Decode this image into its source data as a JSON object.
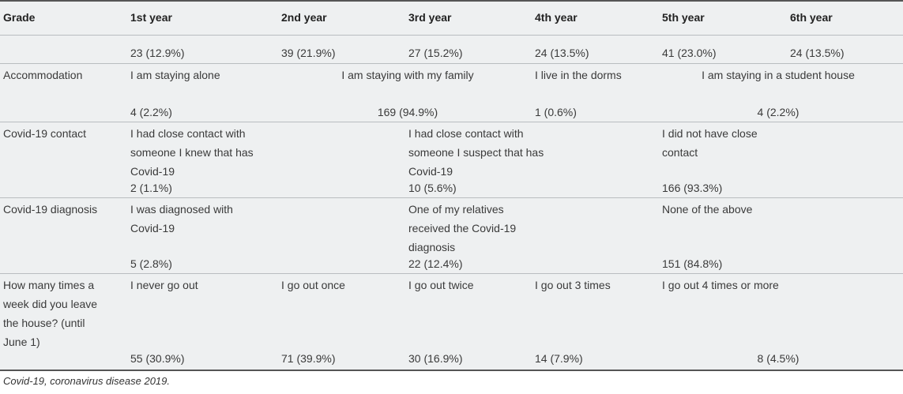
{
  "header": {
    "grade": "Grade",
    "years": [
      "1st year",
      "2nd year",
      "3rd year",
      "4th year",
      "5th year",
      "6th year"
    ]
  },
  "grade_counts": [
    "23 (12.9%)",
    "39 (21.9%)",
    "27 (15.2%)",
    "24 (13.5%)",
    "41 (23.0%)",
    "24 (13.5%)"
  ],
  "accommodation": {
    "label": "Accommodation",
    "options": [
      "I am staying alone",
      "I am staying with my family",
      "I live in the dorms",
      "I am staying in a student house"
    ],
    "values": [
      "4 (2.2%)",
      "169 (94.9%)",
      "1 (0.6%)",
      "4 (2.2%)"
    ]
  },
  "contact": {
    "label": "Covid-19 contact",
    "options": [
      "I had close contact with someone I knew that has Covid-19",
      "I had close contact with someone I suspect that has Covid-19",
      "I did not have close contact"
    ],
    "values": [
      "2 (1.1%)",
      "10 (5.6%)",
      "166 (93.3%)"
    ]
  },
  "diagnosis": {
    "label": "Covid-19 diagnosis",
    "options": [
      "I was diagnosed with Covid-19",
      "One of my relatives received the Covid-19 diagnosis",
      "None of the above"
    ],
    "values": [
      "5 (2.8%)",
      "22 (12.4%)",
      "151 (84.8%)"
    ]
  },
  "outings": {
    "label": "How many times a week did you leave the house? (until June 1)",
    "options": [
      "I never go out",
      "I go out once",
      "I go out twice",
      "I go out 3 times",
      "I go out 4 times or more"
    ],
    "values": [
      "55 (30.9%)",
      "71 (39.9%)",
      "30 (16.9%)",
      "14 (7.9%)",
      "8 (4.5%)"
    ]
  },
  "footnote": "Covid-19, coronavirus disease 2019."
}
